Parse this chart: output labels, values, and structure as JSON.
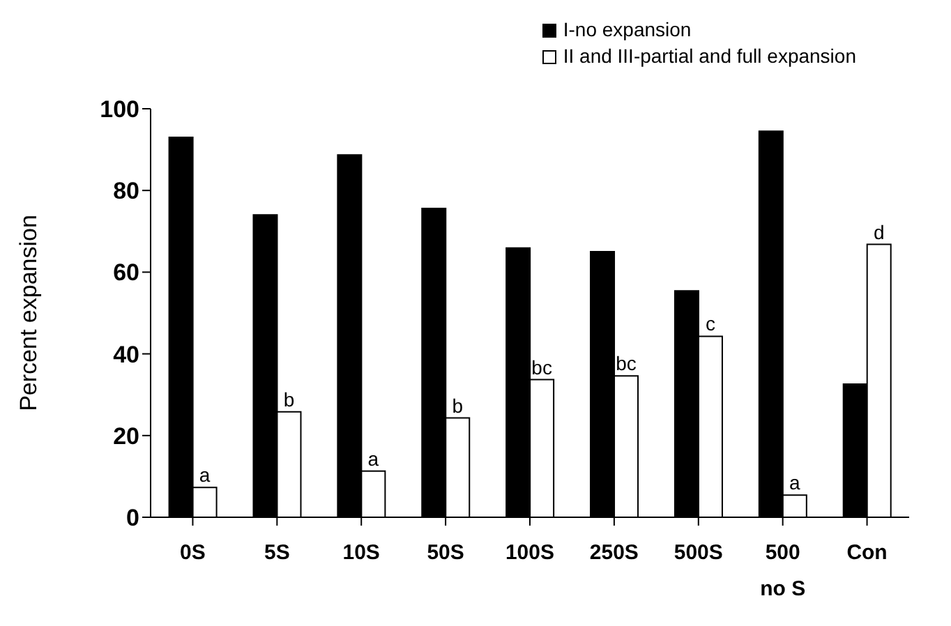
{
  "chart_data": {
    "type": "bar",
    "ylabel": "Percent expansion",
    "categories": [
      "0S",
      "5S",
      "10S",
      "50S",
      "100S",
      "250S",
      "500S",
      "500 no S",
      "Con"
    ],
    "series": [
      {
        "name": "I-no expansion",
        "color": "#000000",
        "values": [
          93,
          74,
          88.7,
          75.6,
          65.9,
          65,
          55.4,
          94.5,
          32.6
        ]
      },
      {
        "name": "II and III-partial and full expansion",
        "color": "#ffffff",
        "values": [
          7.3,
          25.8,
          11.3,
          24.3,
          33.7,
          34.6,
          44.3,
          5.4,
          66.8
        ],
        "value_labels": [
          "a",
          "b",
          "a",
          "b",
          "bc",
          "bc",
          "c",
          "a",
          "d"
        ]
      }
    ],
    "ylim": [
      0,
      100
    ],
    "yticks": [
      0,
      20,
      40,
      60,
      80,
      100
    ],
    "legend": "top right"
  }
}
